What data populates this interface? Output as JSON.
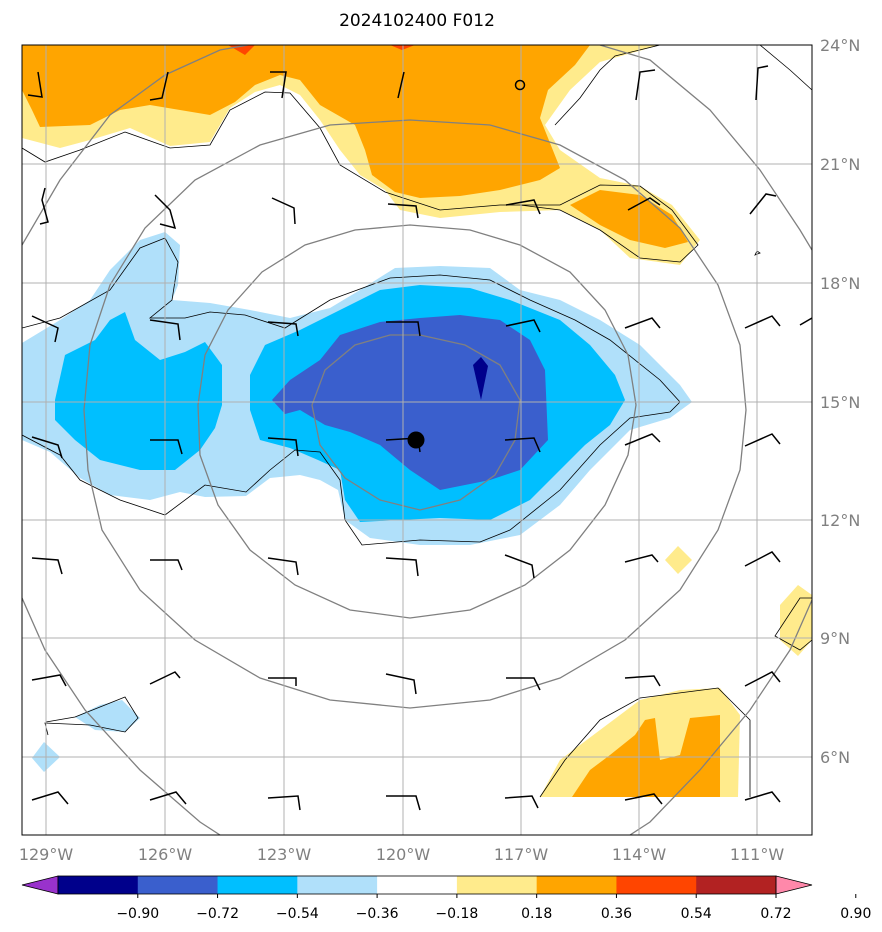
{
  "title": "2024102400 F012",
  "map": {
    "lon_range": [
      -129.6,
      -109.4
    ],
    "lat_range": [
      4.0,
      24.0
    ],
    "lon_ticks": [
      "129°W",
      "126°W",
      "123°W",
      "120°W",
      "117°W",
      "114°W",
      "111°W"
    ],
    "lat_ticks": [
      "6°N",
      "9°N",
      "12°N",
      "15°N",
      "18°N",
      "21°N",
      "24°N"
    ],
    "center_marker": "storm-center-dot",
    "range_rings": "gray",
    "gridlines": true
  },
  "colorbar": {
    "tick_labels": [
      "−0.90",
      "−0.72",
      "−0.54",
      "−0.36",
      "−0.18",
      "0.18",
      "0.36",
      "0.54",
      "0.72",
      "0.90"
    ],
    "colors": [
      "#9932cc",
      "#00008b",
      "#3a5fcd",
      "#00bfff",
      "#b0e0fa",
      "#ffffff",
      "#ffeb8c",
      "#ffa500",
      "#ff4500",
      "#b22222",
      "#ff88aa"
    ],
    "extend": "both"
  },
  "colors": {
    "strong_neg": "#3a5fcd",
    "mid_neg": "#00bfff",
    "weak_neg": "#b0e0fa",
    "deep_neg": "#00008b",
    "weak_pos": "#ffeb8c",
    "mid_pos": "#ffa500",
    "strong_pos": "#ff4500"
  }
}
